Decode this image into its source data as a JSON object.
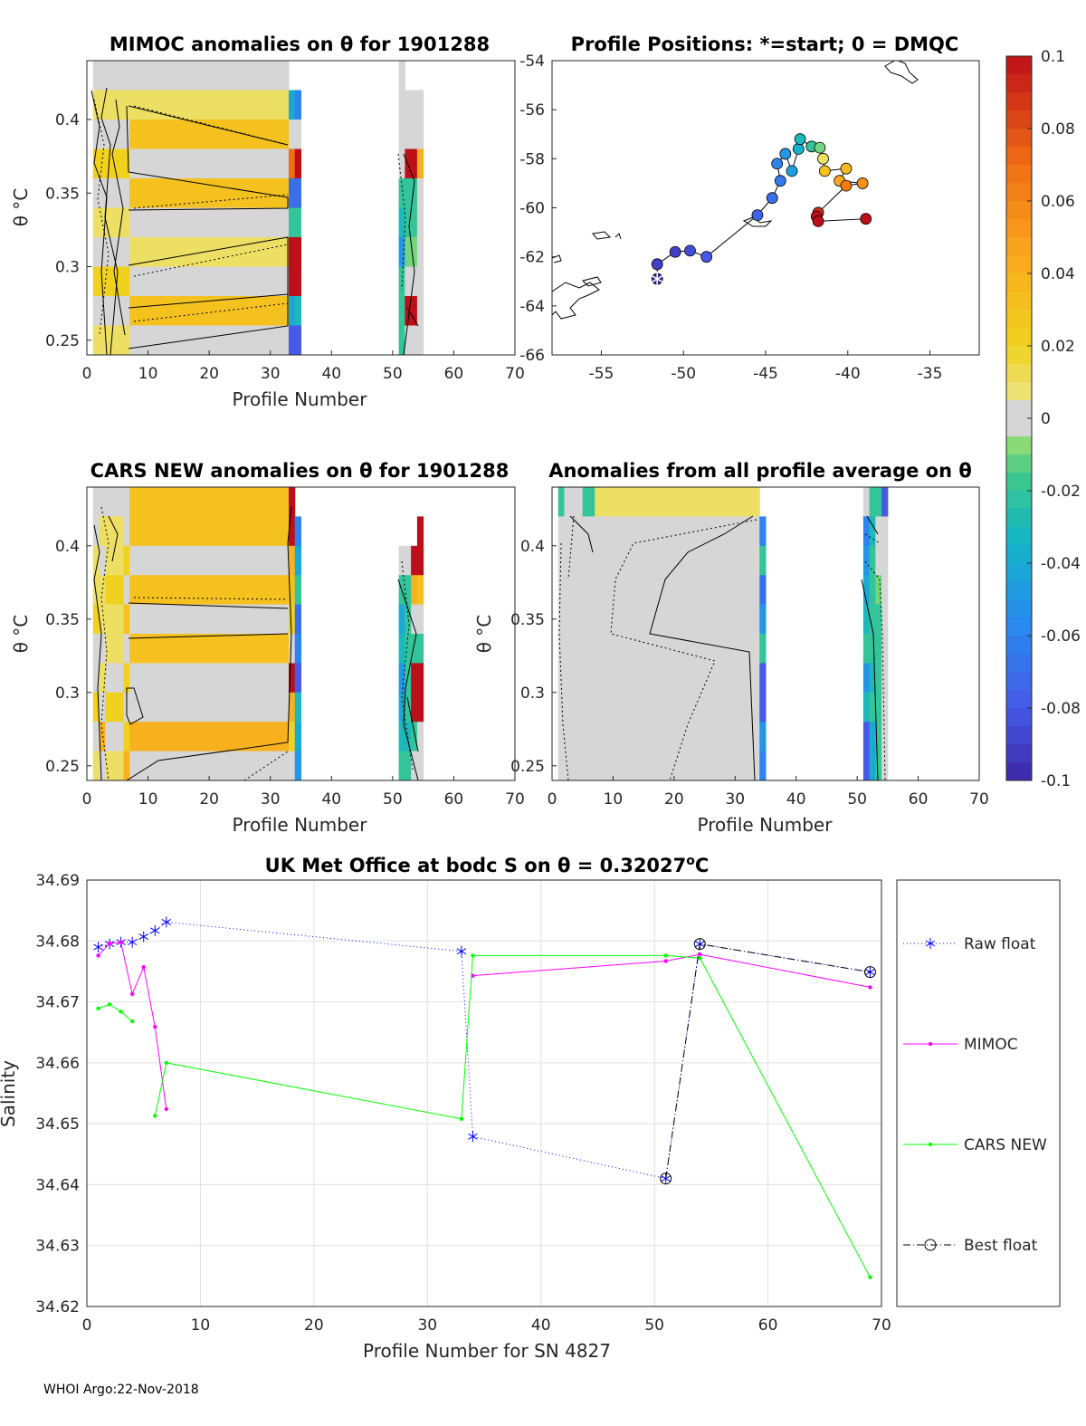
{
  "footer": "WHOI Argo:22-Nov-2018",
  "colorbar": {
    "ticks": [
      "0.1",
      "0.08",
      "0.06",
      "0.04",
      "0.02",
      "0",
      "-0.02",
      "-0.04",
      "-0.06",
      "-0.08",
      "-0.1"
    ],
    "range": [
      -0.1,
      0.1
    ]
  },
  "panels": {
    "mimoc": {
      "title": "MIMOC anomalies on θ  for 1901288",
      "xlabel": "Profile Number",
      "ylabel": "θ °C",
      "xticks": [
        "0",
        "10",
        "20",
        "30",
        "40",
        "50",
        "60",
        "70"
      ],
      "yticks": [
        "0.4",
        "0.35",
        "0.3",
        "0.25"
      ]
    },
    "positions": {
      "title": "Profile Positions: *=start; 0 = DMQC",
      "xticks": [
        "-55",
        "-50",
        "-45",
        "-40",
        "-35"
      ],
      "yticks": [
        "-54",
        "-56",
        "-58",
        "-60",
        "-62",
        "-64",
        "-66"
      ]
    },
    "cars": {
      "title": "CARS NEW anomalies on θ for 1901288",
      "xlabel": "Profile Number",
      "ylabel": "θ °C",
      "xticks": [
        "0",
        "10",
        "20",
        "30",
        "40",
        "50",
        "60",
        "70"
      ],
      "yticks": [
        "0.4",
        "0.35",
        "0.3",
        "0.25"
      ]
    },
    "avg": {
      "title": "Anomalies from all profile average on θ",
      "xlabel": "Profile Number",
      "ylabel": "θ °C",
      "xticks": [
        "0",
        "10",
        "20",
        "30",
        "40",
        "50",
        "60",
        "70"
      ],
      "yticks": [
        "0.4",
        "0.35",
        "0.3",
        "0.25"
      ]
    }
  },
  "chart_data": [
    {
      "type": "heatmap",
      "title": "MIMOC anomalies on θ  for 1901288",
      "xlabel": "Profile Number",
      "ylabel": "θ °C",
      "xlim": [
        0,
        70
      ],
      "ylim": [
        0.24,
        0.44
      ],
      "columns": [
        {
          "x": [
            1,
            7
          ],
          "levels": [
            0.0,
            0.01,
            0.0,
            0.02,
            0.0,
            0.01,
            0.0,
            0.02,
            0.0,
            0.01
          ]
        },
        {
          "x": [
            7,
            33
          ],
          "levels": [
            0.0,
            0.01,
            0.03,
            0.0,
            0.03,
            0.0,
            0.01,
            0.0,
            0.03,
            0.0
          ]
        },
        {
          "x": [
            33,
            34
          ],
          "levels": [
            null,
            -0.04,
            0.0,
            0.07,
            -0.07,
            -0.02,
            0.1,
            0.1,
            -0.04,
            -0.08
          ]
        },
        {
          "x": [
            34,
            35
          ],
          "levels": [
            null,
            -0.06,
            0.0,
            0.1,
            -0.07,
            -0.02,
            0.1,
            0.1,
            -0.03,
            -0.08
          ]
        },
        {
          "x": [
            51,
            52
          ],
          "levels": [
            0.0,
            0.0,
            0.0,
            0.0,
            -0.02,
            -0.03,
            -0.05,
            -0.02,
            -0.02,
            -0.02
          ]
        },
        {
          "x": [
            52,
            54
          ],
          "levels": [
            null,
            0.0,
            0.0,
            0.1,
            -0.02,
            -0.02,
            -0.01,
            0.0,
            0.1,
            0.0
          ]
        },
        {
          "x": [
            54,
            55
          ],
          "levels": [
            null,
            0.0,
            0.0,
            0.04,
            0.0,
            0.0,
            0.0,
            0.0,
            0.0,
            0.0
          ]
        }
      ]
    },
    {
      "type": "scatter",
      "title": "Profile Positions: *=start; 0 = DMQC",
      "xlim": [
        -58,
        -32
      ],
      "ylim": [
        -66,
        -54
      ],
      "track": [
        {
          "lon": -51.6,
          "lat": -62.9,
          "c": -0.1
        },
        {
          "lon": -51.6,
          "lat": -62.3,
          "c": -0.09
        },
        {
          "lon": -50.5,
          "lat": -61.8,
          "c": -0.09
        },
        {
          "lon": -49.6,
          "lat": -61.75,
          "c": -0.085
        },
        {
          "lon": -48.6,
          "lat": -62.0,
          "c": -0.08
        },
        {
          "lon": -45.5,
          "lat": -60.3,
          "c": -0.075
        },
        {
          "lon": -44.6,
          "lat": -59.6,
          "c": -0.07
        },
        {
          "lon": -44.1,
          "lat": -58.9,
          "c": -0.065
        },
        {
          "lon": -44.3,
          "lat": -58.2,
          "c": -0.06
        },
        {
          "lon": -43.8,
          "lat": -57.8,
          "c": -0.05
        },
        {
          "lon": -43.4,
          "lat": -58.5,
          "c": -0.045
        },
        {
          "lon": -43.0,
          "lat": -57.6,
          "c": -0.035
        },
        {
          "lon": -42.9,
          "lat": -57.2,
          "c": -0.03
        },
        {
          "lon": -42.2,
          "lat": -57.5,
          "c": -0.02
        },
        {
          "lon": -41.7,
          "lat": -57.55,
          "c": -0.01
        },
        {
          "lon": -41.5,
          "lat": -58.0,
          "c": 0.01
        },
        {
          "lon": -41.4,
          "lat": -58.5,
          "c": 0.03
        },
        {
          "lon": -40.1,
          "lat": -58.4,
          "c": 0.035
        },
        {
          "lon": -40.5,
          "lat": -58.9,
          "c": 0.045
        },
        {
          "lon": -39.1,
          "lat": -59.0,
          "c": 0.055
        },
        {
          "lon": -40.1,
          "lat": -59.1,
          "c": 0.065
        },
        {
          "lon": -41.8,
          "lat": -60.2,
          "c": 0.09
        },
        {
          "lon": -41.9,
          "lat": -60.35,
          "c": 0.1
        },
        {
          "lon": -41.8,
          "lat": -60.55,
          "c": 0.1
        },
        {
          "lon": -38.9,
          "lat": -60.45,
          "c": 0.1
        }
      ],
      "start": {
        "lon": -51.6,
        "lat": -62.9
      }
    },
    {
      "type": "heatmap",
      "title": "CARS NEW anomalies on θ for 1901288",
      "xlabel": "Profile Number",
      "ylabel": "θ °C",
      "xlim": [
        0,
        70
      ],
      "ylim": [
        0.24,
        0.44
      ],
      "columns": [
        {
          "x": [
            1,
            2
          ],
          "levels": [
            0.0,
            0.0,
            0.01,
            0.01,
            0.02,
            0.0,
            0.0,
            0.02,
            0.0,
            0.01
          ]
        },
        {
          "x": [
            2,
            3
          ],
          "levels": [
            0.0,
            0.01,
            0.0,
            0.01,
            0.01,
            0.0,
            0.01,
            0.0,
            0.04,
            0.0
          ]
        },
        {
          "x": [
            3,
            6
          ],
          "levels": [
            0.0,
            0.01,
            0.01,
            0.02,
            0.01,
            0.01,
            0.0,
            0.02,
            0.0,
            0.01
          ]
        },
        {
          "x": [
            6,
            7
          ],
          "levels": [
            0.0,
            0.0,
            0.02,
            0.0,
            0.03,
            0.0,
            0.02,
            0.0,
            0.02,
            0.04
          ]
        },
        {
          "x": [
            7,
            33
          ],
          "levels": [
            0.03,
            0.03,
            0.0,
            0.03,
            0.0,
            0.03,
            0.0,
            0.0,
            0.04,
            0.0
          ]
        },
        {
          "x": [
            33,
            34
          ],
          "levels": [
            0.1,
            0.1,
            0.04,
            0.03,
            0.02,
            0.0,
            0.1,
            0.04,
            0.02,
            0.0
          ]
        },
        {
          "x": [
            34,
            35
          ],
          "levels": [
            null,
            -0.06,
            -0.04,
            -0.02,
            -0.07,
            -0.06,
            -0.08,
            -0.03,
            -0.04,
            -0.05
          ]
        },
        {
          "x": [
            51,
            52
          ],
          "levels": [
            null,
            null,
            0.0,
            -0.02,
            -0.04,
            -0.03,
            -0.05,
            -0.04,
            -0.03,
            -0.02
          ]
        },
        {
          "x": [
            52,
            53
          ],
          "levels": [
            null,
            null,
            0.0,
            -0.02,
            -0.02,
            -0.02,
            -0.02,
            -0.02,
            -0.03,
            -0.02
          ]
        },
        {
          "x": [
            53,
            54
          ],
          "levels": [
            null,
            null,
            0.1,
            0.04,
            0.0,
            -0.02,
            0.1,
            0.1,
            -0.02,
            0.0
          ]
        },
        {
          "x": [
            54,
            55
          ],
          "levels": [
            null,
            0.1,
            0.1,
            0.03,
            0.0,
            -0.02,
            0.1,
            0.1,
            0.0,
            0.0
          ]
        }
      ]
    },
    {
      "type": "heatmap",
      "title": "Anomalies from all profile average on θ",
      "xlabel": "Profile Number",
      "ylabel": "θ °C",
      "xlim": [
        0,
        70
      ],
      "ylim": [
        0.24,
        0.44
      ],
      "columns": [
        {
          "x": [
            1,
            2
          ],
          "levels": [
            -0.02,
            0.0,
            0.0,
            0.0,
            0.0,
            0.0,
            0.0,
            0.0,
            0.0,
            0.0
          ]
        },
        {
          "x": [
            2,
            5
          ],
          "levels": [
            0.0,
            0.0,
            0.0,
            0.0,
            0.0,
            0.0,
            0.0,
            0.0,
            0.0,
            0.0
          ]
        },
        {
          "x": [
            5,
            7
          ],
          "levels": [
            -0.02,
            0.0,
            0.0,
            0.0,
            0.0,
            0.0,
            0.0,
            0.0,
            0.0,
            0.0
          ]
        },
        {
          "x": [
            7,
            34
          ],
          "levels": [
            0.01,
            0.0,
            0.0,
            0.0,
            0.0,
            0.0,
            0.0,
            0.0,
            0.0,
            0.0
          ]
        },
        {
          "x": [
            34,
            35
          ],
          "levels": [
            null,
            -0.06,
            -0.02,
            -0.07,
            -0.05,
            -0.02,
            -0.08,
            -0.08,
            -0.05,
            -0.06
          ]
        },
        {
          "x": [
            51,
            52
          ],
          "levels": [
            0.0,
            -0.06,
            -0.05,
            -0.04,
            -0.03,
            -0.02,
            -0.05,
            -0.03,
            -0.08,
            -0.08
          ]
        },
        {
          "x": [
            52,
            53
          ],
          "levels": [
            -0.02,
            -0.03,
            -0.02,
            -0.02,
            -0.02,
            -0.02,
            -0.03,
            -0.02,
            -0.04,
            -0.04
          ]
        },
        {
          "x": [
            53,
            54
          ],
          "levels": [
            -0.02,
            0.0,
            0.0,
            -0.01,
            -0.02,
            -0.02,
            -0.02,
            -0.02,
            -0.02,
            -0.02
          ]
        },
        {
          "x": [
            54,
            55
          ],
          "levels": [
            -0.08,
            0.0,
            0.0,
            0.0,
            0.0,
            0.0,
            0.0,
            0.0,
            0.0,
            0.0
          ]
        }
      ]
    },
    {
      "type": "line",
      "title": "UK Met Office at bodc S on θ = 0.32027°C",
      "title_text": "UK Met Office at bodc S on θ = 0.32027",
      "title_unit_sup": "o",
      "title_unit": "C",
      "xlabel": "Profile Number for SN 4827",
      "ylabel": "Salinity",
      "xlim": [
        0,
        70
      ],
      "ylim": [
        34.62,
        34.69
      ],
      "xticks": [
        "0",
        "10",
        "20",
        "30",
        "40",
        "50",
        "60",
        "70"
      ],
      "yticks": [
        "34.69",
        "34.68",
        "34.67",
        "34.66",
        "34.65",
        "34.64",
        "34.63",
        "34.62"
      ],
      "series": [
        {
          "name": "Raw float",
          "color": "#0000ff",
          "style": "dotted",
          "marker": "asterisk",
          "segments": [
            [
              [
                1,
                34.679
              ],
              [
                2,
                34.6795
              ],
              [
                3,
                34.6798
              ],
              [
                4,
                34.6798
              ],
              [
                5,
                34.6807
              ],
              [
                6,
                34.6817
              ],
              [
                7,
                34.6831
              ],
              [
                33,
                34.6783
              ],
              [
                34,
                34.6479
              ],
              [
                51,
                34.641
              ],
              [
                54,
                34.6795
              ],
              [
                69,
                34.6749
              ]
            ]
          ]
        },
        {
          "name": "MIMOC",
          "color": "#ff00ff",
          "style": "solid",
          "marker": "dot",
          "segments": [
            [
              [
                1,
                34.6776
              ],
              [
                2,
                34.6796
              ],
              [
                3,
                34.6798
              ],
              [
                4,
                34.6713
              ],
              [
                5,
                34.6757
              ],
              [
                6,
                34.6659
              ],
              [
                7,
                34.6524
              ]
            ],
            [
              [
                34,
                34.6743
              ],
              [
                51,
                34.6767
              ],
              [
                54,
                34.6778
              ],
              [
                69,
                34.6724
              ]
            ]
          ]
        },
        {
          "name": "CARS NEW",
          "color": "#00ff00",
          "style": "solid",
          "marker": "dot",
          "segments": [
            [
              [
                1,
                34.6689
              ],
              [
                2,
                34.6696
              ],
              [
                3,
                34.6684
              ],
              [
                4,
                34.6668
              ]
            ],
            [
              [
                6,
                34.6513
              ],
              [
                7,
                34.66
              ],
              [
                33,
                34.6508
              ],
              [
                34,
                34.6776
              ],
              [
                51,
                34.6776
              ],
              [
                54,
                34.6772
              ],
              [
                69,
                34.6248
              ]
            ]
          ]
        },
        {
          "name": "Best float",
          "color": "#000000",
          "style": "dashdot",
          "marker": "circle",
          "segments": [
            [
              [
                51,
                34.641
              ],
              [
                54,
                34.6795
              ],
              [
                69,
                34.6749
              ]
            ]
          ]
        }
      ]
    }
  ]
}
